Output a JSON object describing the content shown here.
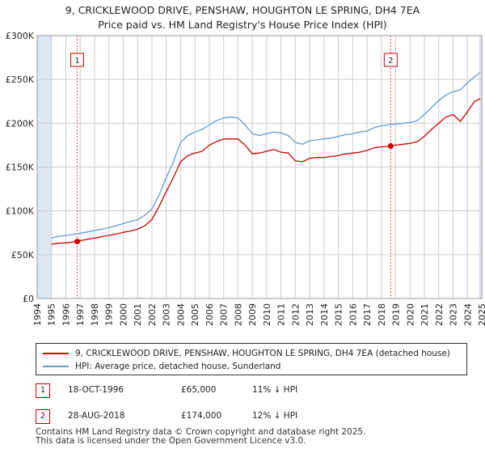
{
  "title_line1": "9, CRICKLEWOOD DRIVE, PENSHAW, HOUGHTON LE SPRING, DH4 7EA",
  "title_line2": "Price paid vs. HM Land Registry's House Price Index (HPI)",
  "colors": {
    "property": "#cc0000",
    "hpi": "#6699cc",
    "shade": "#dde6f3",
    "marker_line": "#ee4444",
    "grid": "#cccccc"
  },
  "legend": {
    "property_label": "9, CRICKLEWOOD DRIVE, PENSHAW, HOUGHTON LE SPRING, DH4 7EA (detached house)",
    "hpi_label": "HPI: Average price, detached house, Sunderland"
  },
  "sales": [
    {
      "num": "1",
      "date": "18-OCT-1996",
      "price": "£65,000",
      "delta": "11% ↓ HPI"
    },
    {
      "num": "2",
      "date": "28-AUG-2018",
      "price": "£174,000",
      "delta": "12% ↓ HPI"
    }
  ],
  "footer_line1": "Contains HM Land Registry data © Crown copyright and database right 2025.",
  "footer_line2": "This data is licensed under the Open Government Licence v3.0.",
  "chart_data": {
    "type": "line",
    "title": "9, CRICKLEWOOD DRIVE, PENSHAW, HOUGHTON LE SPRING, DH4 7EA — Price paid vs. HM Land Registry's House Price Index (HPI)",
    "xlim": [
      1994,
      2025
    ],
    "ylim": [
      0,
      300000
    ],
    "x_ticks": [
      1994,
      1995,
      1996,
      1997,
      1998,
      1999,
      2000,
      2001,
      2002,
      2003,
      2004,
      2005,
      2006,
      2007,
      2008,
      2009,
      2010,
      2011,
      2012,
      2013,
      2014,
      2015,
      2016,
      2017,
      2018,
      2019,
      2020,
      2021,
      2022,
      2023,
      2024,
      2025
    ],
    "y_ticks": [
      0,
      50000,
      100000,
      150000,
      200000,
      250000,
      300000
    ],
    "y_tick_labels": [
      "£0",
      "£50K",
      "£100K",
      "£150K",
      "£200K",
      "£250K",
      "£300K"
    ],
    "shaded_ranges": [
      [
        1994,
        1995
      ],
      [
        2024.8,
        2025
      ]
    ],
    "grid": true,
    "series": [
      {
        "name": "9, CRICKLEWOOD DRIVE, PENSHAW, HOUGHTON LE SPRING, DH4 7EA (detached house)",
        "x": [
          1995.0,
          1995.5,
          1996.0,
          1996.5,
          1996.79,
          1997.0,
          1997.5,
          1998.0,
          1998.5,
          1999.0,
          1999.5,
          2000.0,
          2000.5,
          2001.0,
          2001.5,
          2002.0,
          2002.5,
          2003.0,
          2003.5,
          2004.0,
          2004.5,
          2005.0,
          2005.5,
          2006.0,
          2006.5,
          2007.0,
          2007.5,
          2008.0,
          2008.5,
          2009.0,
          2009.5,
          2010.0,
          2010.5,
          2011.0,
          2011.5,
          2012.0,
          2012.5,
          2013.0,
          2013.5,
          2014.0,
          2014.5,
          2015.0,
          2015.5,
          2016.0,
          2016.5,
          2017.0,
          2017.5,
          2018.0,
          2018.65,
          2019.0,
          2019.5,
          2020.0,
          2020.5,
          2021.0,
          2021.5,
          2022.0,
          2022.5,
          2023.0,
          2023.5,
          2024.0,
          2024.5,
          2024.9
        ],
        "values": [
          62000,
          63000,
          63500,
          64500,
          65000,
          66000,
          67500,
          69000,
          70500,
          72000,
          73500,
          75500,
          77000,
          79000,
          83000,
          90000,
          105000,
          122000,
          138000,
          156000,
          163000,
          166000,
          168000,
          175000,
          179000,
          182000,
          182000,
          182000,
          175000,
          165000,
          166000,
          168000,
          170000,
          167000,
          166000,
          157000,
          156000,
          160000,
          161000,
          161000,
          162000,
          163000,
          165000,
          166000,
          167000,
          169000,
          172000,
          173000,
          174000,
          175000,
          176000,
          177000,
          179000,
          185000,
          193000,
          200000,
          207000,
          210000,
          202000,
          213000,
          225000,
          228000
        ]
      },
      {
        "name": "HPI: Average price, detached house, Sunderland",
        "x": [
          1995.0,
          1995.5,
          1996.0,
          1996.5,
          1997.0,
          1997.5,
          1998.0,
          1998.5,
          1999.0,
          1999.5,
          2000.0,
          2000.5,
          2001.0,
          2001.5,
          2002.0,
          2002.5,
          2003.0,
          2003.5,
          2004.0,
          2004.5,
          2005.0,
          2005.5,
          2006.0,
          2006.5,
          2007.0,
          2007.5,
          2008.0,
          2008.5,
          2009.0,
          2009.5,
          2010.0,
          2010.5,
          2011.0,
          2011.5,
          2012.0,
          2012.5,
          2013.0,
          2013.5,
          2014.0,
          2014.5,
          2015.0,
          2015.5,
          2016.0,
          2016.5,
          2017.0,
          2017.5,
          2018.0,
          2018.5,
          2019.0,
          2019.5,
          2020.0,
          2020.5,
          2021.0,
          2021.5,
          2022.0,
          2022.5,
          2023.0,
          2023.5,
          2024.0,
          2024.5,
          2024.9
        ],
        "values": [
          69000,
          71000,
          72000,
          73000,
          74500,
          76000,
          77500,
          79000,
          81000,
          83000,
          85500,
          88000,
          90000,
          95000,
          102000,
          118000,
          138000,
          156000,
          178000,
          186000,
          190000,
          193000,
          198000,
          203000,
          206000,
          207000,
          206000,
          198000,
          188000,
          186000,
          188000,
          190000,
          189000,
          186000,
          178000,
          176000,
          180000,
          181000,
          182000,
          183000,
          185000,
          187000,
          188000,
          190000,
          191000,
          195000,
          197000,
          198000,
          199000,
          200000,
          201000,
          203000,
          210000,
          218000,
          226000,
          232000,
          236000,
          238000,
          246000,
          253000,
          258000
        ]
      }
    ],
    "annotations": [
      {
        "label": "1",
        "x": 1996.79,
        "value": 65000
      },
      {
        "label": "2",
        "x": 2018.65,
        "value": 174000
      }
    ]
  }
}
